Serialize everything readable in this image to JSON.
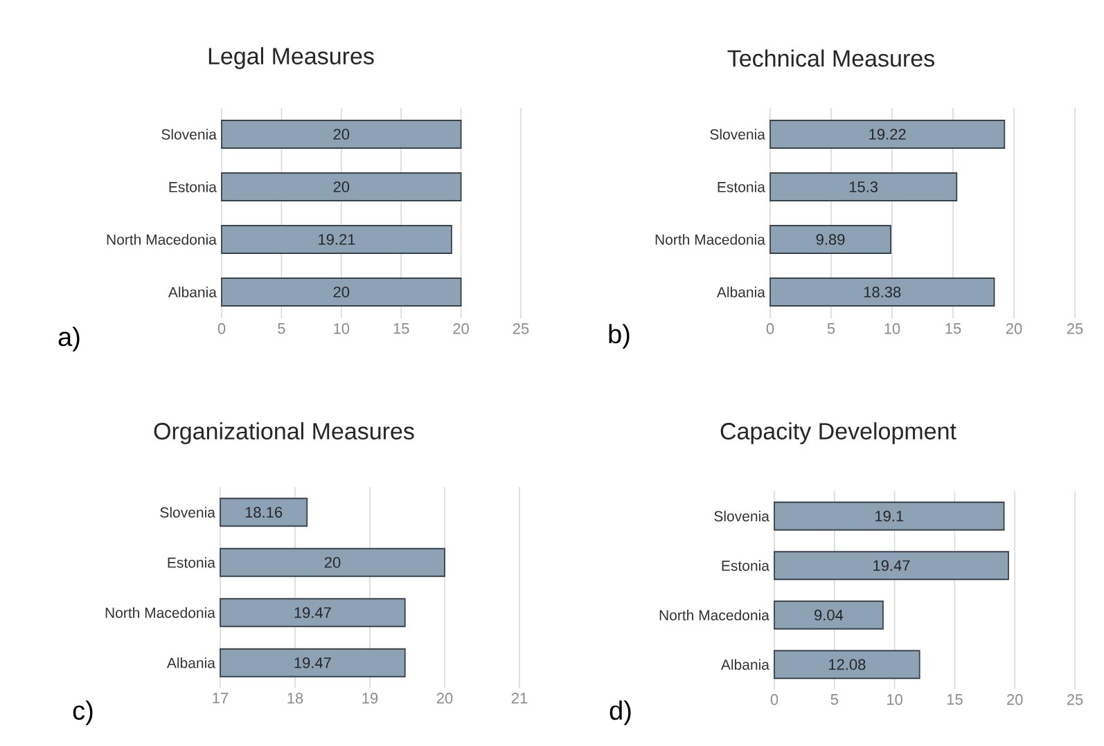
{
  "chart_data": [
    {
      "type": "bar",
      "orientation": "horizontal",
      "title": "Legal Measures",
      "categories": [
        "Slovenia",
        "Estonia",
        "North Macedonia",
        "Albania"
      ],
      "values": [
        20,
        20,
        19.21,
        20
      ],
      "color": "#8ea2b6",
      "xlim": [
        0,
        25
      ],
      "xticks": [
        0,
        5,
        10,
        15,
        20,
        25
      ],
      "grid": "x",
      "data_labels": true,
      "annotations": [
        "a)"
      ]
    },
    {
      "type": "bar",
      "orientation": "horizontal",
      "title": "Technical Measures",
      "categories": [
        "Slovenia",
        "Estonia",
        "North Macedonia",
        "Albania"
      ],
      "values": [
        19.22,
        15.3,
        9.89,
        18.38
      ],
      "color": "#8ea2b6",
      "xlim": [
        0,
        25
      ],
      "xticks": [
        0,
        5,
        10,
        15,
        20,
        25
      ],
      "grid": "x",
      "data_labels": true,
      "annotations": [
        "b)"
      ]
    },
    {
      "type": "bar",
      "orientation": "horizontal",
      "title": "Organizational Measures",
      "categories": [
        "Slovenia",
        "Estonia",
        "North Macedonia",
        "Albania"
      ],
      "values": [
        18.16,
        20,
        19.47,
        19.47
      ],
      "color": "#8ea2b6",
      "xlim": [
        17,
        21
      ],
      "xticks": [
        17,
        18,
        19,
        20,
        21
      ],
      "grid": "x",
      "data_labels": true,
      "annotations": [
        "c)"
      ]
    },
    {
      "type": "bar",
      "orientation": "horizontal",
      "title": "Capacity Development",
      "categories": [
        "Slovenia",
        "Estonia",
        "North Macedonia",
        "Albania"
      ],
      "values": [
        19.1,
        19.47,
        9.04,
        12.08
      ],
      "color": "#8ea2b6",
      "xlim": [
        0,
        25
      ],
      "xticks": [
        0,
        5,
        10,
        15,
        20,
        25
      ],
      "grid": "x",
      "data_labels": true,
      "annotations": [
        "d)"
      ]
    }
  ]
}
